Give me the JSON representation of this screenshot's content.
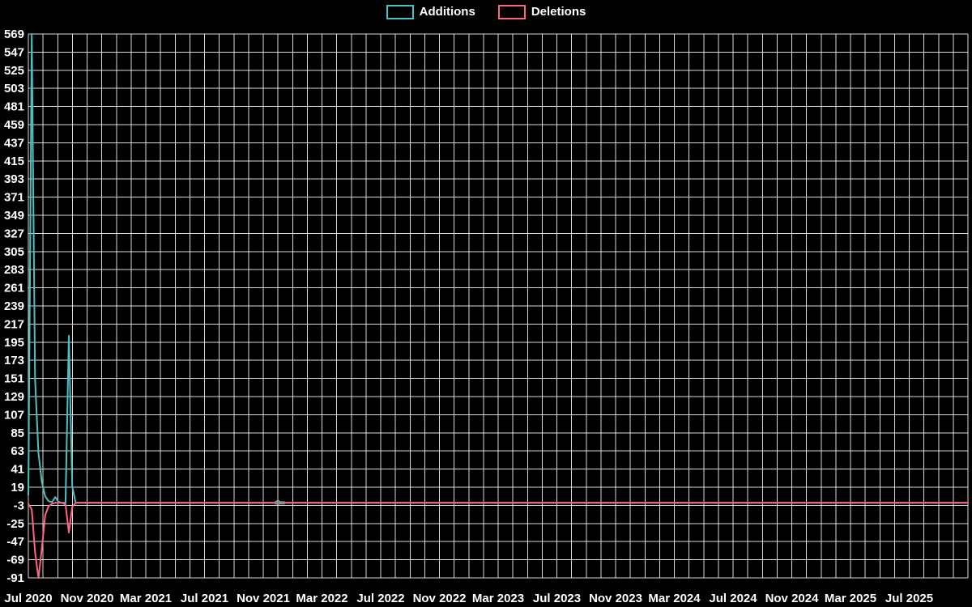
{
  "page": {
    "background": "#000000",
    "text_color": "#ffffff"
  },
  "legend": {
    "items": [
      {
        "label": "Additions",
        "color": "#4bc0c0"
      },
      {
        "label": "Deletions",
        "color": "#ff6384"
      }
    ]
  },
  "chart_data": {
    "type": "line",
    "title": "",
    "xlabel": "",
    "ylabel": "",
    "background": "#000000",
    "grid": true,
    "grid_color": "rgba(255,255,255,0.85)",
    "text_color": "#ffffff",
    "legend_position": "top-center",
    "ylim": [
      -91,
      569
    ],
    "y_tick_step": 22,
    "y_ticks": [
      569,
      547,
      525,
      503,
      481,
      459,
      437,
      415,
      393,
      371,
      349,
      327,
      305,
      283,
      261,
      239,
      217,
      195,
      173,
      151,
      129,
      107,
      85,
      63,
      41,
      19,
      -3,
      -25,
      -47,
      -69,
      -91
    ],
    "x_domain_months": [
      0,
      64
    ],
    "x_minor_grid_every_months": 1,
    "x_ticks": [
      {
        "month": 0,
        "label": "Jul 2020"
      },
      {
        "month": 4,
        "label": "Nov 2020"
      },
      {
        "month": 8,
        "label": "Mar 2021"
      },
      {
        "month": 12,
        "label": "Jul 2021"
      },
      {
        "month": 16,
        "label": "Nov 2021"
      },
      {
        "month": 20,
        "label": "Mar 2022"
      },
      {
        "month": 24,
        "label": "Jul 2022"
      },
      {
        "month": 28,
        "label": "Nov 2022"
      },
      {
        "month": 32,
        "label": "Mar 2023"
      },
      {
        "month": 36,
        "label": "Jul 2023"
      },
      {
        "month": 40,
        "label": "Nov 2023"
      },
      {
        "month": 44,
        "label": "Mar 2024"
      },
      {
        "month": 48,
        "label": "Jul 2024"
      },
      {
        "month": 52,
        "label": "Nov 2024"
      },
      {
        "month": 56,
        "label": "Mar 2025"
      },
      {
        "month": 60,
        "label": "Jul 2025"
      }
    ],
    "series": [
      {
        "name": "Additions",
        "color": "#4bc0c0",
        "points": [
          [
            0,
            10
          ],
          [
            0.23,
            569
          ],
          [
            0.46,
            150
          ],
          [
            0.69,
            60
          ],
          [
            0.92,
            25
          ],
          [
            1.15,
            8
          ],
          [
            1.38,
            2
          ],
          [
            1.61,
            1
          ],
          [
            1.84,
            7
          ],
          [
            2.07,
            1
          ],
          [
            2.3,
            0
          ],
          [
            2.53,
            0
          ],
          [
            2.76,
            203
          ],
          [
            2.99,
            20
          ],
          [
            3.22,
            0
          ],
          [
            3.45,
            0
          ],
          [
            16.8,
            0
          ],
          [
            17.0,
            3
          ],
          [
            17.2,
            0
          ],
          [
            64,
            0
          ]
        ]
      },
      {
        "name": "Deletions",
        "color": "#ff6384",
        "points": [
          [
            0,
            -1
          ],
          [
            0.23,
            -8
          ],
          [
            0.46,
            -60
          ],
          [
            0.69,
            -91
          ],
          [
            0.92,
            -55
          ],
          [
            1.15,
            -15
          ],
          [
            1.38,
            -4
          ],
          [
            1.61,
            -1
          ],
          [
            1.84,
            0
          ],
          [
            2.3,
            0
          ],
          [
            2.53,
            -2
          ],
          [
            2.76,
            -36
          ],
          [
            2.99,
            -5
          ],
          [
            3.22,
            0
          ],
          [
            16.8,
            0
          ],
          [
            17.0,
            -2
          ],
          [
            17.2,
            0
          ],
          [
            64,
            0
          ]
        ]
      }
    ],
    "artifacts": [
      {
        "month": 16.95,
        "value": 0
      },
      {
        "month": 17.3,
        "value": 0
      }
    ],
    "artifact_color": "#8e8e8e"
  }
}
